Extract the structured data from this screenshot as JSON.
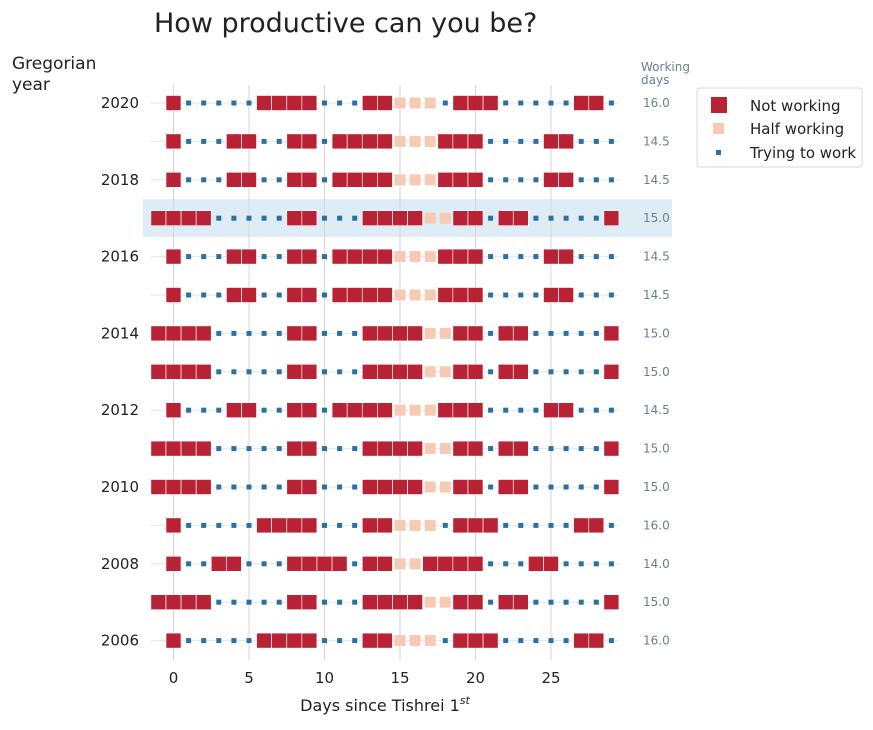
{
  "chart_data": {
    "type": "scatter",
    "title": "How productive can you be?",
    "ylabel_line1": "Gregorian",
    "ylabel_line2": "year",
    "xlabel": "Days since Tishrei 1",
    "xlabel_sup": "st",
    "working_days_header_line1": "Working",
    "working_days_header_line2": "days",
    "x_ticks": [
      0,
      5,
      10,
      15,
      20,
      25
    ],
    "xlim": [
      -1.5,
      29.5
    ],
    "y_tick_labels": [
      "2020",
      "2018",
      "2016",
      "2014",
      "2012",
      "2010",
      "2008",
      "2006"
    ],
    "highlight_year": 2017,
    "legend": [
      "Not working",
      "Half working",
      "Trying to work"
    ],
    "colors": {
      "not_working": "#b82234",
      "half_working": "#f7cbb3",
      "trying": "#2a6fa6",
      "highlight": "#deedf5",
      "grid": "#d6d6d6"
    },
    "years": [
      {
        "year": 2020,
        "not": [
          0,
          6,
          7,
          8,
          9,
          13,
          14,
          19,
          20,
          21,
          27,
          28
        ],
        "half": [
          15,
          16,
          17
        ],
        "working_days": "16.0"
      },
      {
        "year": 2019,
        "not": [
          0,
          4,
          5,
          8,
          9,
          11,
          12,
          13,
          14,
          18,
          19,
          20,
          25,
          26
        ],
        "half": [
          15,
          16,
          17
        ],
        "working_days": "14.5"
      },
      {
        "year": 2018,
        "not": [
          0,
          4,
          5,
          8,
          9,
          11,
          12,
          13,
          14,
          18,
          19,
          20,
          25,
          26
        ],
        "half": [
          15,
          16,
          17
        ],
        "working_days": "14.5"
      },
      {
        "year": 2017,
        "not": [
          -1,
          0,
          1,
          2,
          8,
          9,
          13,
          14,
          15,
          16,
          19,
          20,
          22,
          23,
          29
        ],
        "half": [
          17,
          18
        ],
        "working_days": "15.0"
      },
      {
        "year": 2016,
        "not": [
          0,
          4,
          5,
          8,
          9,
          11,
          12,
          13,
          14,
          18,
          19,
          20,
          25,
          26
        ],
        "half": [
          15,
          16,
          17
        ],
        "working_days": "14.5"
      },
      {
        "year": 2015,
        "not": [
          0,
          4,
          5,
          8,
          9,
          11,
          12,
          13,
          14,
          18,
          19,
          20,
          25,
          26
        ],
        "half": [
          15,
          16,
          17
        ],
        "working_days": "14.5"
      },
      {
        "year": 2014,
        "not": [
          -1,
          0,
          1,
          2,
          8,
          9,
          13,
          14,
          15,
          16,
          19,
          20,
          22,
          23,
          29
        ],
        "half": [
          17,
          18
        ],
        "working_days": "15.0"
      },
      {
        "year": 2013,
        "not": [
          -1,
          0,
          1,
          2,
          8,
          9,
          13,
          14,
          15,
          16,
          19,
          20,
          22,
          23,
          29
        ],
        "half": [
          17,
          18
        ],
        "working_days": "15.0"
      },
      {
        "year": 2012,
        "not": [
          0,
          4,
          5,
          8,
          9,
          11,
          12,
          13,
          14,
          18,
          19,
          20,
          25,
          26
        ],
        "half": [
          15,
          16,
          17
        ],
        "working_days": "14.5"
      },
      {
        "year": 2011,
        "not": [
          -1,
          0,
          1,
          2,
          8,
          9,
          13,
          14,
          15,
          16,
          19,
          20,
          22,
          23,
          29
        ],
        "half": [
          17,
          18
        ],
        "working_days": "15.0"
      },
      {
        "year": 2010,
        "not": [
          -1,
          0,
          1,
          2,
          8,
          9,
          13,
          14,
          15,
          16,
          19,
          20,
          22,
          23,
          29
        ],
        "half": [
          17,
          18
        ],
        "working_days": "15.0"
      },
      {
        "year": 2009,
        "not": [
          0,
          6,
          7,
          8,
          9,
          13,
          14,
          19,
          20,
          21,
          27,
          28
        ],
        "half": [
          15,
          16,
          17
        ],
        "working_days": "16.0"
      },
      {
        "year": 2008,
        "not": [
          0,
          3,
          4,
          8,
          9,
          10,
          11,
          13,
          14,
          17,
          18,
          19,
          20,
          24,
          25
        ],
        "half": [
          15,
          16
        ],
        "working_days": "14.0"
      },
      {
        "year": 2007,
        "not": [
          -1,
          0,
          1,
          2,
          8,
          9,
          13,
          14,
          15,
          16,
          19,
          20,
          22,
          23,
          29
        ],
        "half": [
          17,
          18
        ],
        "working_days": "15.0"
      },
      {
        "year": 2006,
        "not": [
          0,
          6,
          7,
          8,
          9,
          13,
          14,
          19,
          20,
          21,
          27,
          28
        ],
        "half": [
          15,
          16,
          17
        ],
        "working_days": "16.0"
      }
    ]
  }
}
